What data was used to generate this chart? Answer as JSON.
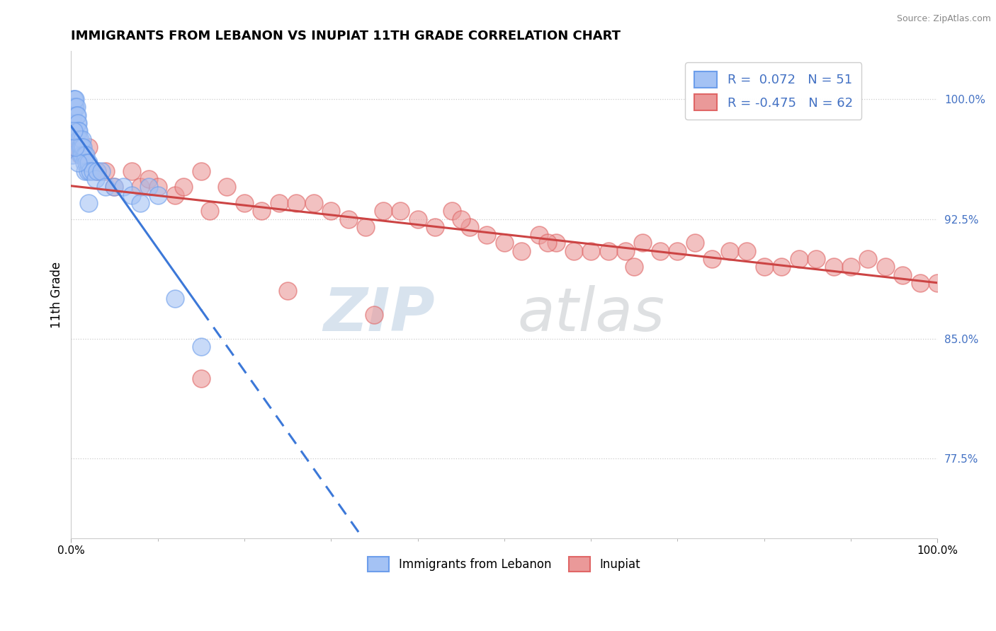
{
  "title": "IMMIGRANTS FROM LEBANON VS INUPIAT 11TH GRADE CORRELATION CHART",
  "source": "Source: ZipAtlas.com",
  "xlabel": "",
  "ylabel": "11th Grade",
  "xlim": [
    0.0,
    1.0
  ],
  "ylim": [
    0.725,
    1.03
  ],
  "yticks": [
    0.775,
    0.85,
    0.925,
    1.0
  ],
  "ytick_labels": [
    "77.5%",
    "85.0%",
    "92.5%",
    "100.0%"
  ],
  "xtick_labels": [
    "0.0%",
    "100.0%"
  ],
  "xticks": [
    0.0,
    1.0
  ],
  "blue_R": 0.072,
  "blue_N": 51,
  "pink_R": -0.475,
  "pink_N": 62,
  "blue_color": "#a4c2f4",
  "pink_color": "#ea9999",
  "blue_edge_color": "#6d9eeb",
  "pink_edge_color": "#e06666",
  "blue_line_color": "#3c78d8",
  "pink_line_color": "#cc4444",
  "legend_label_blue": "Immigrants from Lebanon",
  "legend_label_pink": "Inupiat",
  "blue_scatter_x": [
    0.001,
    0.002,
    0.002,
    0.003,
    0.003,
    0.004,
    0.004,
    0.005,
    0.005,
    0.006,
    0.006,
    0.007,
    0.007,
    0.008,
    0.008,
    0.009,
    0.009,
    0.01,
    0.01,
    0.011,
    0.011,
    0.012,
    0.012,
    0.013,
    0.013,
    0.014,
    0.015,
    0.015,
    0.016,
    0.017,
    0.018,
    0.019,
    0.02,
    0.022,
    0.025,
    0.028,
    0.03,
    0.035,
    0.04,
    0.05,
    0.06,
    0.07,
    0.08,
    0.09,
    0.1,
    0.12,
    0.15,
    0.02,
    0.008,
    0.005,
    0.003
  ],
  "blue_scatter_y": [
    0.965,
    0.99,
    0.985,
    1.0,
    0.995,
    1.0,
    0.995,
    0.995,
    1.0,
    0.995,
    0.99,
    0.985,
    0.99,
    0.985,
    0.98,
    0.98,
    0.975,
    0.975,
    0.97,
    0.97,
    0.965,
    0.965,
    0.97,
    0.975,
    0.965,
    0.97,
    0.96,
    0.965,
    0.955,
    0.965,
    0.96,
    0.955,
    0.96,
    0.955,
    0.955,
    0.95,
    0.955,
    0.955,
    0.945,
    0.945,
    0.945,
    0.94,
    0.935,
    0.945,
    0.94,
    0.875,
    0.845,
    0.935,
    0.96,
    0.97,
    0.98
  ],
  "pink_scatter_x": [
    0.005,
    0.01,
    0.02,
    0.03,
    0.04,
    0.05,
    0.07,
    0.08,
    0.09,
    0.1,
    0.12,
    0.13,
    0.15,
    0.16,
    0.18,
    0.2,
    0.22,
    0.24,
    0.26,
    0.28,
    0.3,
    0.32,
    0.34,
    0.36,
    0.38,
    0.4,
    0.42,
    0.44,
    0.46,
    0.48,
    0.5,
    0.52,
    0.54,
    0.56,
    0.58,
    0.6,
    0.62,
    0.64,
    0.66,
    0.68,
    0.7,
    0.72,
    0.74,
    0.76,
    0.78,
    0.8,
    0.82,
    0.84,
    0.86,
    0.88,
    0.9,
    0.92,
    0.94,
    0.96,
    0.98,
    1.0,
    0.15,
    0.25,
    0.35,
    0.45,
    0.55,
    0.65
  ],
  "pink_scatter_y": [
    0.97,
    0.965,
    0.97,
    0.955,
    0.955,
    0.945,
    0.955,
    0.945,
    0.95,
    0.945,
    0.94,
    0.945,
    0.955,
    0.93,
    0.945,
    0.935,
    0.93,
    0.935,
    0.935,
    0.935,
    0.93,
    0.925,
    0.92,
    0.93,
    0.93,
    0.925,
    0.92,
    0.93,
    0.92,
    0.915,
    0.91,
    0.905,
    0.915,
    0.91,
    0.905,
    0.905,
    0.905,
    0.905,
    0.91,
    0.905,
    0.905,
    0.91,
    0.9,
    0.905,
    0.905,
    0.895,
    0.895,
    0.9,
    0.9,
    0.895,
    0.895,
    0.9,
    0.895,
    0.89,
    0.885,
    0.885,
    0.825,
    0.88,
    0.865,
    0.925,
    0.91,
    0.895
  ]
}
